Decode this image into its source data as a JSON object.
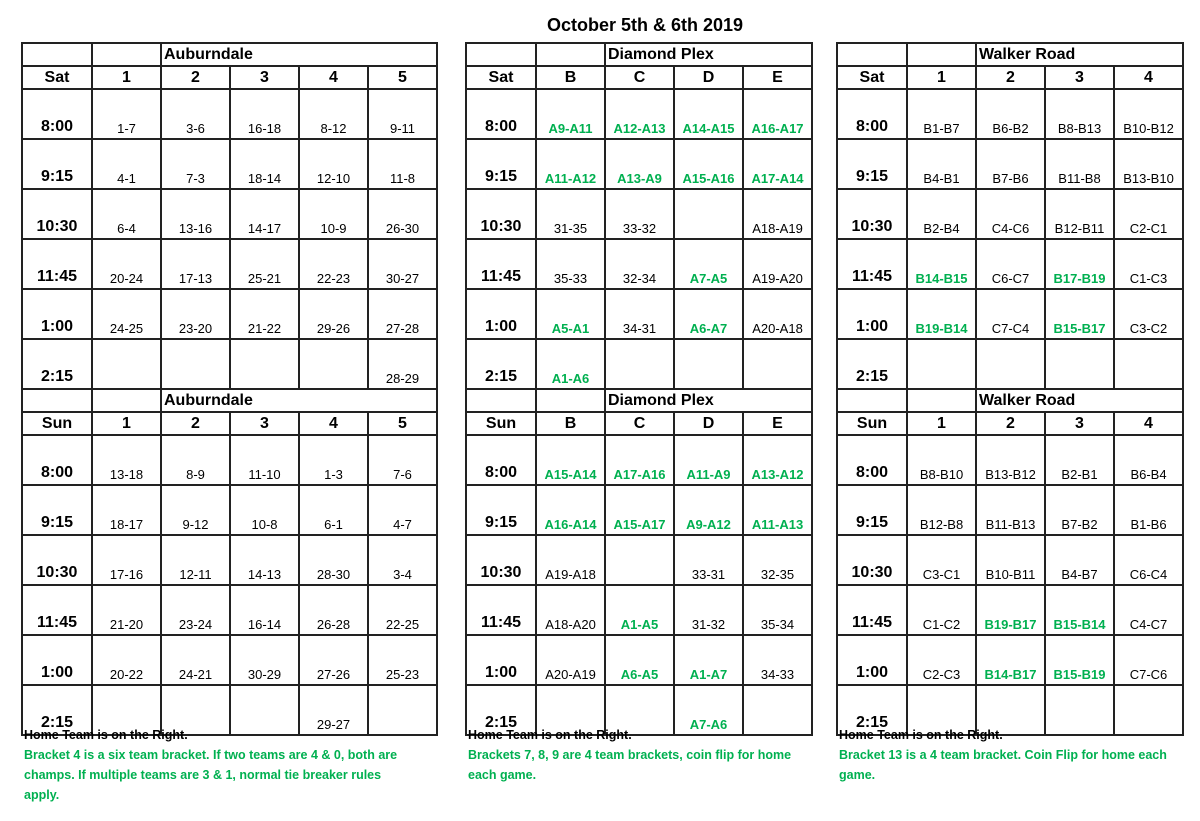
{
  "title": "October 5th & 6th 2019",
  "colors": {
    "green": "#00b050",
    "black": "#000000"
  },
  "fields": [
    {
      "sat": {
        "venue": "Auburndale",
        "day": "Sat",
        "columns": [
          "1",
          "2",
          "3",
          "4",
          "5"
        ],
        "rows": [
          {
            "time": "8:00",
            "cells": [
              {
                "t": "1-7"
              },
              {
                "t": "3-6"
              },
              {
                "t": "16-18"
              },
              {
                "t": "8-12"
              },
              {
                "t": "9-11"
              }
            ]
          },
          {
            "time": "9:15",
            "cells": [
              {
                "t": "4-1"
              },
              {
                "t": "7-3"
              },
              {
                "t": "18-14"
              },
              {
                "t": "12-10"
              },
              {
                "t": "11-8"
              }
            ]
          },
          {
            "time": "10:30",
            "cells": [
              {
                "t": "6-4"
              },
              {
                "t": "13-16"
              },
              {
                "t": "14-17"
              },
              {
                "t": "10-9"
              },
              {
                "t": "26-30"
              }
            ]
          },
          {
            "time": "11:45",
            "cells": [
              {
                "t": "20-24"
              },
              {
                "t": "17-13"
              },
              {
                "t": "25-21"
              },
              {
                "t": "22-23"
              },
              {
                "t": "30-27"
              }
            ]
          },
          {
            "time": "1:00",
            "cells": [
              {
                "t": "24-25"
              },
              {
                "t": "23-20"
              },
              {
                "t": "21-22"
              },
              {
                "t": "29-26"
              },
              {
                "t": "27-28"
              }
            ]
          },
          {
            "time": "2:15",
            "cells": [
              {
                "t": ""
              },
              {
                "t": ""
              },
              {
                "t": ""
              },
              {
                "t": ""
              },
              {
                "t": "28-29"
              }
            ]
          }
        ]
      },
      "sun": {
        "venue": "Auburndale",
        "day": "Sun",
        "columns": [
          "1",
          "2",
          "3",
          "4",
          "5"
        ],
        "rows": [
          {
            "time": "8:00",
            "cells": [
              {
                "t": "13-18"
              },
              {
                "t": "8-9"
              },
              {
                "t": "11-10"
              },
              {
                "t": "1-3"
              },
              {
                "t": "7-6"
              }
            ]
          },
          {
            "time": "9:15",
            "cells": [
              {
                "t": "18-17"
              },
              {
                "t": "9-12"
              },
              {
                "t": "10-8"
              },
              {
                "t": "6-1"
              },
              {
                "t": "4-7"
              }
            ]
          },
          {
            "time": "10:30",
            "cells": [
              {
                "t": "17-16"
              },
              {
                "t": "12-11"
              },
              {
                "t": "14-13"
              },
              {
                "t": "28-30"
              },
              {
                "t": "3-4"
              }
            ]
          },
          {
            "time": "11:45",
            "cells": [
              {
                "t": "21-20"
              },
              {
                "t": "23-24"
              },
              {
                "t": "16-14"
              },
              {
                "t": "26-28"
              },
              {
                "t": "22-25"
              }
            ]
          },
          {
            "time": "1:00",
            "cells": [
              {
                "t": "20-22"
              },
              {
                "t": "24-21"
              },
              {
                "t": "30-29"
              },
              {
                "t": "27-26"
              },
              {
                "t": "25-23"
              }
            ]
          },
          {
            "time": "2:15",
            "cells": [
              {
                "t": ""
              },
              {
                "t": ""
              },
              {
                "t": ""
              },
              {
                "t": "29-27"
              },
              {
                "t": ""
              }
            ]
          }
        ]
      },
      "notes": {
        "home": "Home Team is on the Right.",
        "bracket": "Bracket 4 is a six team bracket. If two teams are 4 & 0, both are champs. If multiple teams are 3 & 1, normal tie breaker rules apply."
      }
    },
    {
      "sat": {
        "venue": "Diamond Plex",
        "day": "Sat",
        "columns": [
          "B",
          "C",
          "D",
          "E"
        ],
        "rows": [
          {
            "time": "8:00",
            "cells": [
              {
                "t": "A9-A11",
                "g": true
              },
              {
                "t": "A12-A13",
                "g": true
              },
              {
                "t": "A14-A15",
                "g": true
              },
              {
                "t": "A16-A17",
                "g": true
              }
            ]
          },
          {
            "time": "9:15",
            "cells": [
              {
                "t": "A11-A12",
                "g": true
              },
              {
                "t": "A13-A9",
                "g": true
              },
              {
                "t": "A15-A16",
                "g": true
              },
              {
                "t": "A17-A14",
                "g": true
              }
            ]
          },
          {
            "time": "10:30",
            "cells": [
              {
                "t": "31-35"
              },
              {
                "t": "33-32"
              },
              {
                "t": ""
              },
              {
                "t": "A18-A19"
              }
            ]
          },
          {
            "time": "11:45",
            "cells": [
              {
                "t": "35-33"
              },
              {
                "t": "32-34"
              },
              {
                "t": "A7-A5",
                "g": true
              },
              {
                "t": "A19-A20"
              }
            ]
          },
          {
            "time": "1:00",
            "cells": [
              {
                "t": "A5-A1",
                "g": true
              },
              {
                "t": "34-31"
              },
              {
                "t": "A6-A7",
                "g": true
              },
              {
                "t": "A20-A18"
              }
            ]
          },
          {
            "time": "2:15",
            "cells": [
              {
                "t": "A1-A6",
                "g": true
              },
              {
                "t": ""
              },
              {
                "t": ""
              },
              {
                "t": ""
              }
            ]
          }
        ]
      },
      "sun": {
        "venue": "Diamond Plex",
        "day": "Sun",
        "columns": [
          "B",
          "C",
          "D",
          "E"
        ],
        "rows": [
          {
            "time": "8:00",
            "cells": [
              {
                "t": "A15-A14",
                "g": true
              },
              {
                "t": "A17-A16",
                "g": true
              },
              {
                "t": "A11-A9",
                "g": true
              },
              {
                "t": "A13-A12",
                "g": true
              }
            ]
          },
          {
            "time": "9:15",
            "cells": [
              {
                "t": "A16-A14",
                "g": true
              },
              {
                "t": "A15-A17",
                "g": true
              },
              {
                "t": "A9-A12",
                "g": true
              },
              {
                "t": "A11-A13",
                "g": true
              }
            ]
          },
          {
            "time": "10:30",
            "cells": [
              {
                "t": "A19-A18"
              },
              {
                "t": ""
              },
              {
                "t": "33-31"
              },
              {
                "t": "32-35"
              }
            ]
          },
          {
            "time": "11:45",
            "cells": [
              {
                "t": "A18-A20"
              },
              {
                "t": "A1-A5",
                "g": true
              },
              {
                "t": "31-32"
              },
              {
                "t": "35-34"
              }
            ]
          },
          {
            "time": "1:00",
            "cells": [
              {
                "t": "A20-A19"
              },
              {
                "t": "A6-A5",
                "g": true
              },
              {
                "t": "A1-A7",
                "g": true
              },
              {
                "t": "34-33"
              }
            ]
          },
          {
            "time": "2:15",
            "cells": [
              {
                "t": ""
              },
              {
                "t": ""
              },
              {
                "t": "A7-A6",
                "g": true
              },
              {
                "t": ""
              }
            ]
          }
        ]
      },
      "notes": {
        "home": "Home Team is on the Right.",
        "bracket": "Brackets 7, 8, 9 are 4 team brackets, coin flip for home each game."
      }
    },
    {
      "sat": {
        "venue": "Walker Road",
        "day": "Sat",
        "columns": [
          "1",
          "2",
          "3",
          "4"
        ],
        "rows": [
          {
            "time": "8:00",
            "cells": [
              {
                "t": "B1-B7"
              },
              {
                "t": "B6-B2"
              },
              {
                "t": "B8-B13"
              },
              {
                "t": "B10-B12"
              }
            ]
          },
          {
            "time": "9:15",
            "cells": [
              {
                "t": "B4-B1"
              },
              {
                "t": "B7-B6"
              },
              {
                "t": "B11-B8"
              },
              {
                "t": "B13-B10"
              }
            ]
          },
          {
            "time": "10:30",
            "cells": [
              {
                "t": "B2-B4"
              },
              {
                "t": "C4-C6"
              },
              {
                "t": "B12-B11"
              },
              {
                "t": "C2-C1"
              }
            ]
          },
          {
            "time": "11:45",
            "cells": [
              {
                "t": "B14-B15",
                "g": true
              },
              {
                "t": "C6-C7"
              },
              {
                "t": "B17-B19",
                "g": true
              },
              {
                "t": "C1-C3"
              }
            ]
          },
          {
            "time": "1:00",
            "cells": [
              {
                "t": "B19-B14",
                "g": true
              },
              {
                "t": "C7-C4"
              },
              {
                "t": "B15-B17",
                "g": true
              },
              {
                "t": "C3-C2"
              }
            ]
          },
          {
            "time": "2:15",
            "cells": [
              {
                "t": ""
              },
              {
                "t": ""
              },
              {
                "t": ""
              },
              {
                "t": ""
              }
            ]
          }
        ]
      },
      "sun": {
        "venue": "Walker Road",
        "day": "Sun",
        "columns": [
          "1",
          "2",
          "3",
          "4"
        ],
        "rows": [
          {
            "time": "8:00",
            "cells": [
              {
                "t": "B8-B10"
              },
              {
                "t": "B13-B12"
              },
              {
                "t": "B2-B1"
              },
              {
                "t": "B6-B4"
              }
            ]
          },
          {
            "time": "9:15",
            "cells": [
              {
                "t": "B12-B8"
              },
              {
                "t": "B11-B13"
              },
              {
                "t": "B7-B2"
              },
              {
                "t": "B1-B6"
              }
            ]
          },
          {
            "time": "10:30",
            "cells": [
              {
                "t": "C3-C1"
              },
              {
                "t": "B10-B11"
              },
              {
                "t": "B4-B7"
              },
              {
                "t": "C6-C4"
              }
            ]
          },
          {
            "time": "11:45",
            "cells": [
              {
                "t": "C1-C2"
              },
              {
                "t": "B19-B17",
                "g": true
              },
              {
                "t": "B15-B14",
                "g": true
              },
              {
                "t": "C4-C7"
              }
            ]
          },
          {
            "time": "1:00",
            "cells": [
              {
                "t": "C2-C3"
              },
              {
                "t": "B14-B17",
                "g": true
              },
              {
                "t": "B15-B19",
                "g": true
              },
              {
                "t": "C7-C6"
              }
            ]
          },
          {
            "time": "2:15",
            "cells": [
              {
                "t": ""
              },
              {
                "t": ""
              },
              {
                "t": ""
              },
              {
                "t": ""
              }
            ]
          }
        ]
      },
      "notes": {
        "home": "Home Team is on the Right.",
        "bracket": "Bracket 13 is a 4 team bracket. Coin Flip for home each game."
      }
    }
  ]
}
